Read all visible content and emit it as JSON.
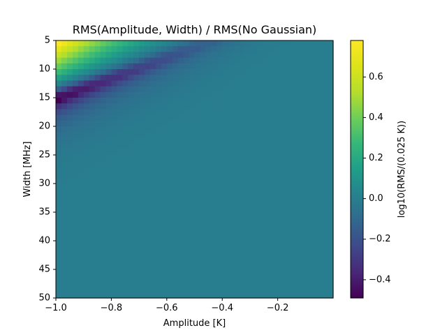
{
  "chart_data": {
    "type": "heatmap",
    "title": "RMS(Amplitude, Width) / RMS(No Gaussian)",
    "xlabel": "Amplitude [K]",
    "ylabel": "Width [MHz]",
    "colorbar_label": "log10(RMS/(0.025 K))",
    "colormap": "viridis",
    "xlim": [
      -1.0,
      0.0
    ],
    "ylim": [
      50,
      5
    ],
    "y_inverted": true,
    "clim": [
      -0.49,
      0.78
    ],
    "x_ticks": [
      -1.0,
      -0.8,
      -0.6,
      -0.4,
      -0.2
    ],
    "x_tick_labels": [
      "−1.0",
      "−0.8",
      "−0.6",
      "−0.4",
      "−0.2"
    ],
    "y_ticks": [
      5,
      10,
      15,
      20,
      25,
      30,
      35,
      40,
      45,
      50
    ],
    "y_tick_labels": [
      "5",
      "10",
      "15",
      "20",
      "25",
      "30",
      "35",
      "40",
      "45",
      "50"
    ],
    "colorbar_ticks": [
      -0.4,
      -0.2,
      0.0,
      0.2,
      0.4,
      0.6
    ],
    "colorbar_tick_labels": [
      "−0.4",
      "−0.2",
      "0.0",
      "0.2",
      "0.4",
      "0.6"
    ],
    "grid": false,
    "amplitude_bins": [
      -1.0,
      -0.98,
      -0.96,
      -0.94,
      -0.92,
      -0.9,
      -0.88,
      -0.86,
      -0.84,
      -0.82,
      -0.8,
      -0.78,
      -0.76,
      -0.74,
      -0.72,
      -0.7,
      -0.68,
      -0.66,
      -0.64,
      -0.62,
      -0.6,
      -0.58,
      -0.56,
      -0.54,
      -0.52,
      -0.5,
      -0.48,
      -0.46,
      -0.44,
      -0.42,
      -0.4,
      -0.38,
      -0.36,
      -0.34,
      -0.32,
      -0.3,
      -0.28,
      -0.26,
      -0.24,
      -0.22,
      -0.2,
      -0.18,
      -0.16,
      -0.14,
      -0.12,
      -0.1,
      -0.08,
      -0.06,
      -0.04,
      -0.02
    ],
    "width_bins": [
      5,
      6,
      7,
      8,
      9,
      10,
      11,
      12,
      13,
      14,
      15,
      16,
      17,
      18,
      19,
      20,
      21,
      22,
      23,
      24,
      25,
      26,
      27,
      28,
      29,
      30,
      31,
      32,
      33,
      34,
      35,
      36,
      37,
      38,
      39,
      40,
      41,
      42,
      43,
      44,
      45,
      46,
      47,
      48,
      49
    ],
    "width_profile_at_amp_minus1": [
      0.78,
      0.68,
      0.58,
      0.48,
      0.38,
      0.28,
      0.16,
      0.04,
      -0.14,
      -0.42,
      -0.49,
      -0.32,
      -0.22,
      -0.16,
      -0.12,
      -0.09,
      -0.07,
      -0.05,
      -0.04,
      -0.03,
      -0.025,
      -0.02,
      -0.015,
      -0.012,
      -0.01,
      -0.008,
      -0.006,
      -0.005,
      -0.004,
      -0.003,
      -0.002,
      -0.002,
      -0.001,
      -0.001,
      -0.001,
      0,
      0,
      0,
      0,
      0,
      0,
      0,
      0,
      0,
      0
    ]
  }
}
